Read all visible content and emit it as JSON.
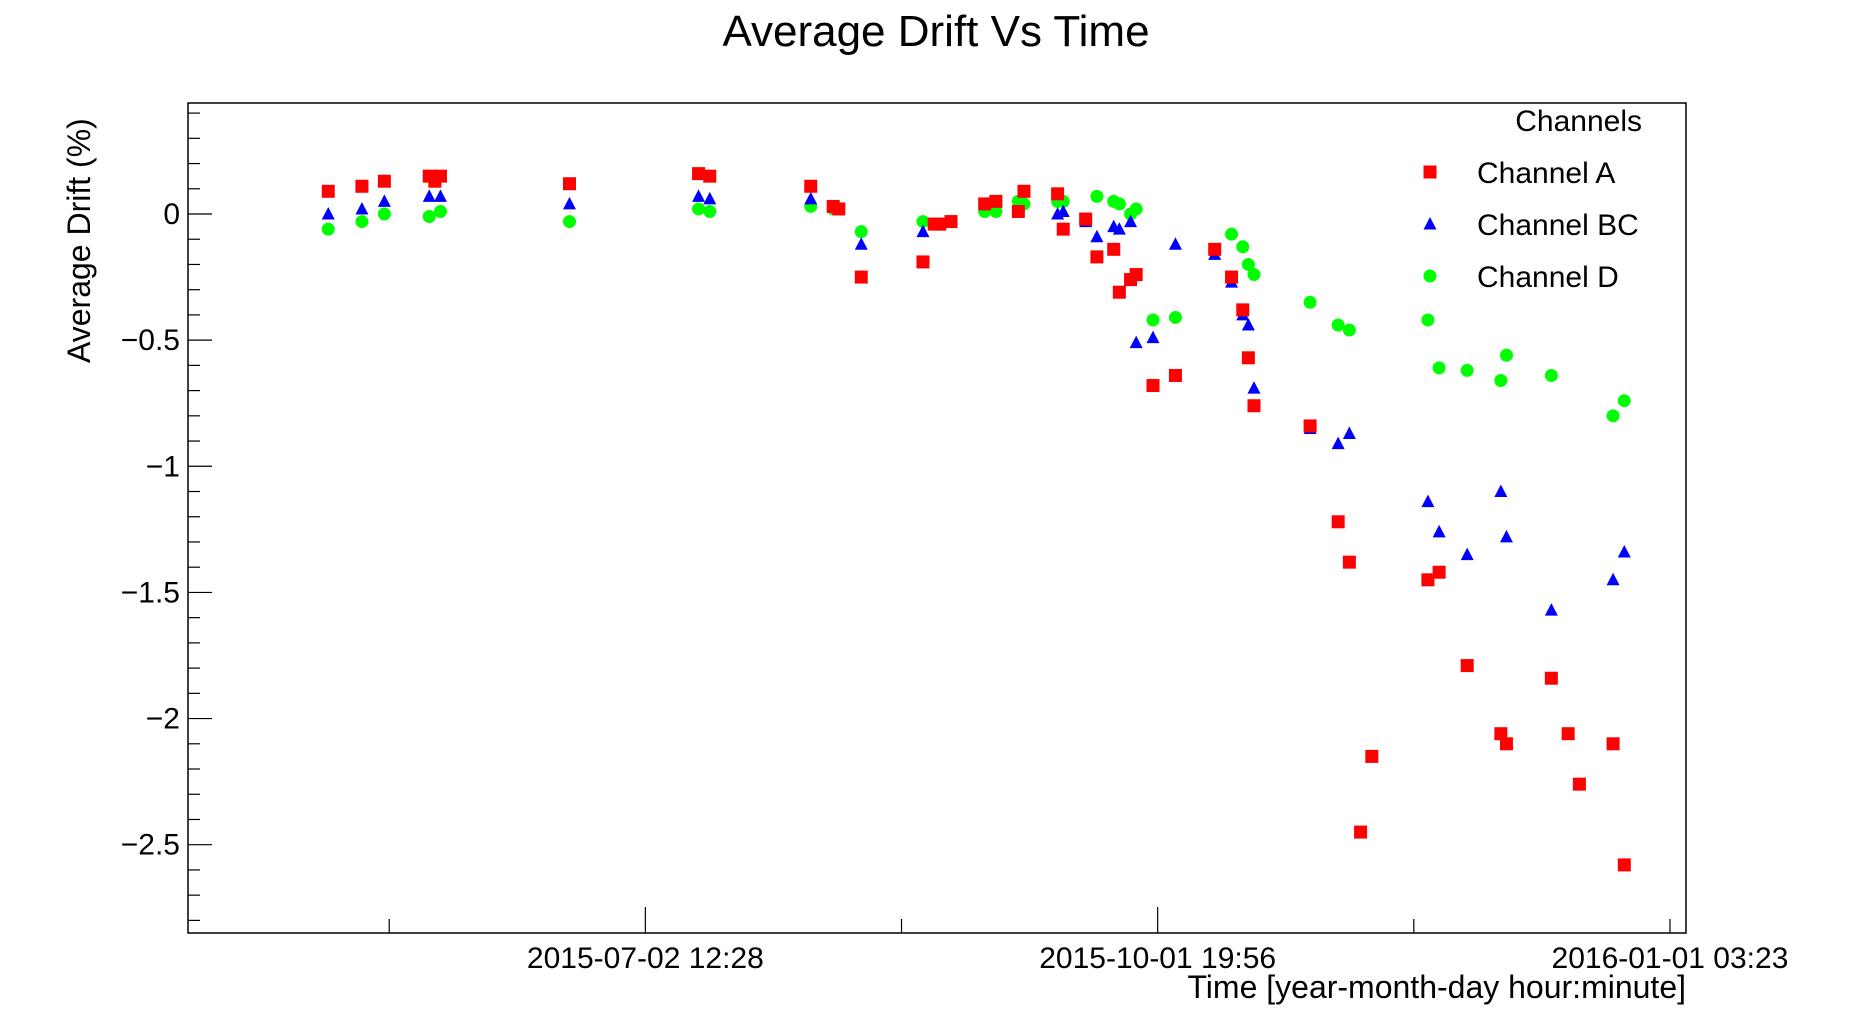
{
  "chart_data": {
    "type": "scatter",
    "title": "Average Drift Vs Time",
    "xlabel": "Time [year-month-day hour:minute]",
    "ylabel": "Average Drift (%)",
    "x_is_date": true,
    "xlim": [
      "2015-04-12 00:00",
      "2016-01-04 00:00"
    ],
    "ylim": [
      -2.85,
      0.44
    ],
    "x_ticks": [
      {
        "value": "2015-07-02 12:28",
        "label": "2015-07-02 12:28"
      },
      {
        "value": "2015-10-01 19:56",
        "label": "2015-10-01 19:56"
      },
      {
        "value": "2016-01-01 03:23",
        "label": "2016-01-01 03:23"
      }
    ],
    "y_ticks": [
      {
        "value": 0,
        "label": "0"
      },
      {
        "value": -0.5,
        "label": "−0.5"
      },
      {
        "value": -1,
        "label": "−1"
      },
      {
        "value": -1.5,
        "label": "−1.5"
      },
      {
        "value": -2,
        "label": "−2"
      },
      {
        "value": -2.5,
        "label": "−2.5"
      }
    ],
    "grid": false,
    "legend": {
      "title": "Channels",
      "position": "top-right"
    },
    "series": [
      {
        "name": "Channel A",
        "marker": "square",
        "color": "#ff0000",
        "x": [
          "2015-05-07",
          "2015-05-13",
          "2015-05-17",
          "2015-05-25",
          "2015-05-26",
          "2015-05-27",
          "2015-06-19",
          "2015-07-12",
          "2015-07-14",
          "2015-08-01",
          "2015-08-05",
          "2015-08-06",
          "2015-08-10",
          "2015-08-21",
          "2015-08-23",
          "2015-08-24",
          "2015-08-26",
          "2015-09-01",
          "2015-09-03",
          "2015-09-07",
          "2015-09-08",
          "2015-09-14",
          "2015-09-15",
          "2015-09-19",
          "2015-09-21",
          "2015-09-24",
          "2015-09-25",
          "2015-09-27",
          "2015-09-28",
          "2015-10-01",
          "2015-10-05",
          "2015-10-12",
          "2015-10-15",
          "2015-10-17",
          "2015-10-18",
          "2015-10-19",
          "2015-10-29",
          "2015-11-03",
          "2015-11-05",
          "2015-11-19",
          "2015-11-21",
          "2015-11-26",
          "2015-12-02",
          "2015-12-03",
          "2015-12-11",
          "2015-12-22",
          "2015-12-24",
          "2015-11-07",
          "2015-11-09",
          "2015-12-14",
          "2015-12-16"
        ],
        "y": [
          0.09,
          0.11,
          0.13,
          0.15,
          0.13,
          0.15,
          0.12,
          0.16,
          0.15,
          0.11,
          0.03,
          0.02,
          -0.25,
          -0.19,
          -0.04,
          -0.04,
          -0.03,
          0.04,
          0.05,
          0.01,
          0.09,
          0.08,
          -0.06,
          -0.02,
          -0.17,
          -0.14,
          -0.31,
          -0.26,
          -0.24,
          -0.68,
          -0.64,
          -0.14,
          -0.25,
          -0.38,
          -0.57,
          -0.76,
          -0.84,
          -1.22,
          -1.38,
          -1.45,
          -1.42,
          -1.79,
          -2.06,
          -2.1,
          -1.84,
          -2.1,
          -2.58,
          -2.45,
          -2.15,
          -2.06,
          -2.26
        ]
      },
      {
        "name": "Channel BC",
        "marker": "triangle",
        "color": "#0000ff",
        "x": [
          "2015-05-07",
          "2015-05-13",
          "2015-05-17",
          "2015-05-25",
          "2015-05-27",
          "2015-06-19",
          "2015-07-12",
          "2015-07-14",
          "2015-08-01",
          "2015-08-10",
          "2015-08-21",
          "2015-09-14",
          "2015-09-15",
          "2015-09-19",
          "2015-09-21",
          "2015-09-24",
          "2015-09-25",
          "2015-09-27",
          "2015-09-28",
          "2015-10-01",
          "2015-10-05",
          "2015-10-12",
          "2015-10-15",
          "2015-10-17",
          "2015-10-18",
          "2015-10-19",
          "2015-10-29",
          "2015-11-03",
          "2015-11-05",
          "2015-11-19",
          "2015-11-21",
          "2015-11-26",
          "2015-12-02",
          "2015-12-03",
          "2015-12-11",
          "2015-12-22",
          "2015-12-24"
        ],
        "y": [
          0.0,
          0.02,
          0.05,
          0.07,
          0.07,
          0.04,
          0.07,
          0.06,
          0.06,
          -0.12,
          -0.07,
          0.0,
          0.01,
          -0.03,
          -0.09,
          -0.05,
          -0.06,
          -0.03,
          -0.51,
          -0.49,
          -0.12,
          -0.16,
          -0.27,
          -0.4,
          -0.44,
          -0.69,
          -0.85,
          -0.91,
          -0.87,
          -1.14,
          -1.26,
          -1.35,
          -1.1,
          -1.28,
          -1.57,
          -1.45,
          -1.34
        ]
      },
      {
        "name": "Channel D",
        "marker": "circle",
        "color": "#00ff00",
        "x": [
          "2015-05-07",
          "2015-05-13",
          "2015-05-17",
          "2015-05-25",
          "2015-05-27",
          "2015-06-19",
          "2015-07-12",
          "2015-07-14",
          "2015-08-01",
          "2015-08-05",
          "2015-08-10",
          "2015-08-21",
          "2015-09-01",
          "2015-09-03",
          "2015-09-07",
          "2015-09-08",
          "2015-09-14",
          "2015-09-15",
          "2015-09-19",
          "2015-09-21",
          "2015-09-24",
          "2015-09-25",
          "2015-09-27",
          "2015-09-28",
          "2015-10-01",
          "2015-10-05",
          "2015-10-12",
          "2015-10-15",
          "2015-10-17",
          "2015-10-18",
          "2015-10-19",
          "2015-10-29",
          "2015-11-03",
          "2015-11-05",
          "2015-11-19",
          "2015-11-21",
          "2015-11-26",
          "2015-12-02",
          "2015-12-03",
          "2015-12-11",
          "2015-12-22",
          "2015-12-24"
        ],
        "y": [
          -0.06,
          -0.03,
          0.0,
          -0.01,
          0.01,
          -0.03,
          0.02,
          0.01,
          0.03,
          0.02,
          -0.07,
          -0.03,
          0.01,
          0.01,
          0.05,
          0.04,
          0.05,
          0.05,
          -0.02,
          0.07,
          0.05,
          0.04,
          0.0,
          0.02,
          -0.42,
          -0.41,
          -0.14,
          -0.08,
          -0.13,
          -0.2,
          -0.24,
          -0.35,
          -0.44,
          -0.46,
          -0.42,
          -0.61,
          -0.62,
          -0.66,
          -0.56,
          -0.64,
          -0.8,
          -0.74
        ]
      }
    ]
  }
}
